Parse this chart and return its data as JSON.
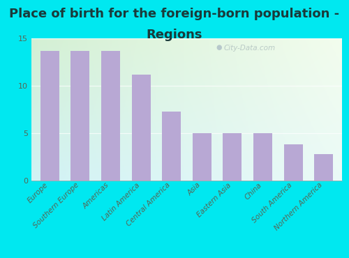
{
  "title_line1": "Place of birth for the foreign-born population -",
  "title_line2": "Regions",
  "categories": [
    "Europe",
    "Southern Europe",
    "Americas",
    "Latin America",
    "Central America",
    "Asia",
    "Eastern Asia",
    "China",
    "South America",
    "Northern America"
  ],
  "values": [
    13.7,
    13.7,
    13.7,
    11.2,
    7.3,
    5.0,
    5.0,
    5.0,
    3.8,
    2.8
  ],
  "bar_color": "#b8a8d4",
  "background_outer": "#00e8f0",
  "gradient_topleft": "#d4ecd4",
  "gradient_topright": "#e8f5e8",
  "gradient_bottomleft": "#c0e8f0",
  "gradient_bottomright": "#ddf5f0",
  "ylim": [
    0,
    15
  ],
  "yticks": [
    0,
    5,
    10,
    15
  ],
  "title_fontsize": 13,
  "tick_fontsize": 7.5,
  "title_color": "#1a3a3a",
  "tick_color": "#556655",
  "watermark": "City-Data.com"
}
